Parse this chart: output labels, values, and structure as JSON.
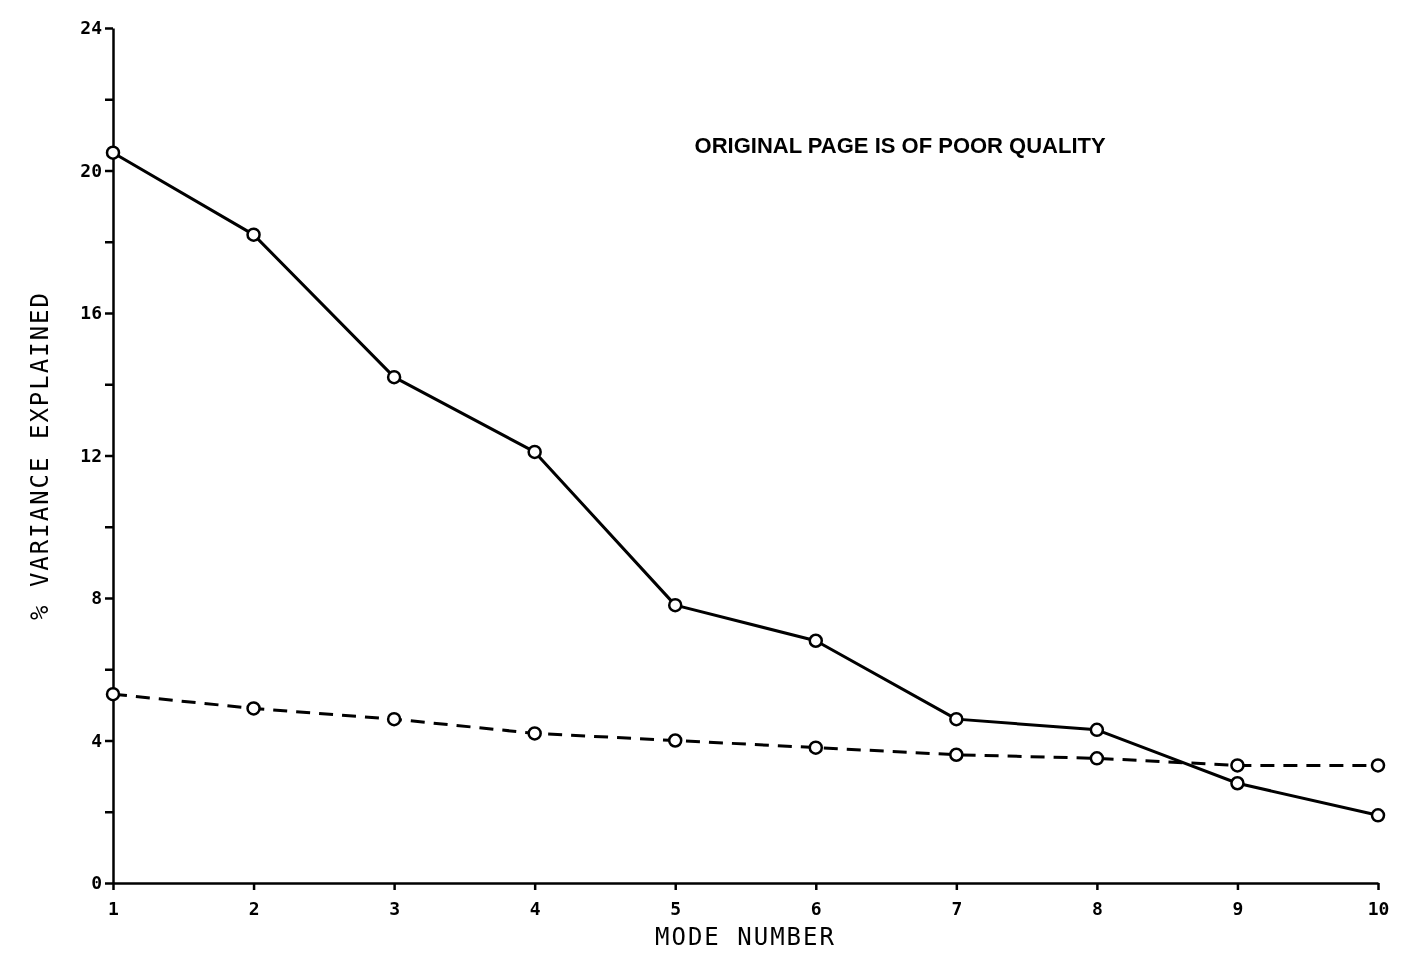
{
  "chart_data": {
    "type": "line",
    "xlabel": "MODE NUMBER",
    "ylabel": "% VARIANCE EXPLAINED",
    "x": [
      1,
      2,
      3,
      4,
      5,
      6,
      7,
      8,
      9,
      10
    ],
    "series": [
      {
        "color": "#000000",
        "line_style": "solid",
        "values": [
          20.5,
          18.2,
          14.2,
          12.1,
          7.8,
          6.8,
          4.6,
          4.3,
          2.8,
          1.9
        ]
      },
      {
        "color": "#000000",
        "line_style": "dashed",
        "values": [
          5.3,
          4.9,
          4.6,
          4.2,
          4.0,
          3.8,
          3.6,
          3.5,
          3.3,
          3.3
        ]
      }
    ],
    "xlim": [
      1,
      10
    ],
    "xticks": [
      1,
      2,
      3,
      4,
      5,
      6,
      7,
      8,
      9,
      10
    ],
    "ylim": [
      0,
      24
    ],
    "yticks": [
      0,
      {
        "value": 2,
        "label": null
      },
      4,
      {
        "value": 6,
        "label": null
      },
      8,
      {
        "value": 10,
        "label": null
      },
      12,
      {
        "value": 14,
        "label": null
      },
      16,
      {
        "value": 18,
        "label": null
      },
      20,
      {
        "value": 22,
        "label": null
      },
      24
    ],
    "marker": "circle",
    "grid": false,
    "annotations": [
      "ORIGINAL PAGE IS OF POOR QUALITY"
    ]
  }
}
